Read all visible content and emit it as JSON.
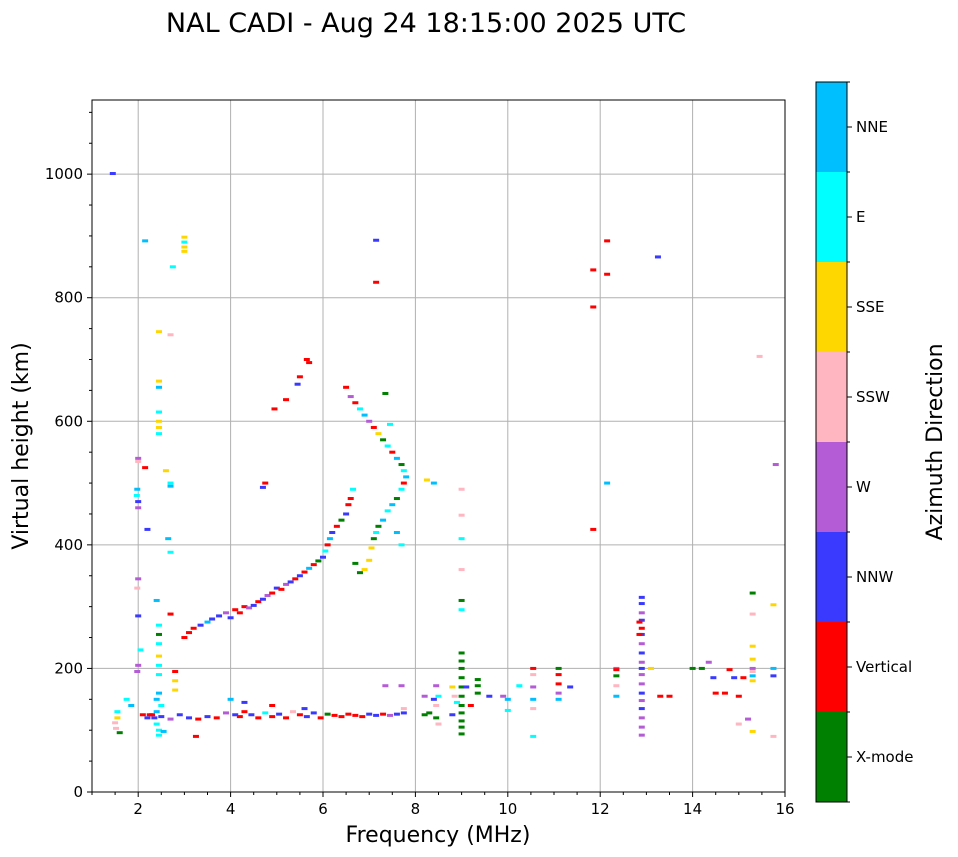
{
  "chart_data": {
    "type": "scatter",
    "title": "NAL CADI - Aug 24 18:15:00 2025 UTC",
    "xlabel": "Frequency (MHz)",
    "ylabel": "Virtual height (km)",
    "xlim": [
      1,
      16
    ],
    "ylim": [
      0,
      1120
    ],
    "xticks": [
      2,
      4,
      6,
      8,
      10,
      12,
      14,
      16
    ],
    "yticks": [
      0,
      200,
      400,
      600,
      800,
      1000
    ],
    "grid": true,
    "colorbar": {
      "title": "Azimuth Direction",
      "categories": [
        {
          "label": "NNE",
          "color": "#00BFFF"
        },
        {
          "label": "E",
          "color": "#00FFFF"
        },
        {
          "label": "SSE",
          "color": "#FFD700"
        },
        {
          "label": "SSW",
          "color": "#FFB6C1"
        },
        {
          "label": "W",
          "color": "#B45CD6"
        },
        {
          "label": "NNW",
          "color": "#3A3AFF"
        },
        {
          "label": "Vertical",
          "color": "#FF0000"
        },
        {
          "label": "X-mode",
          "color": "#008000"
        }
      ]
    },
    "points": [
      [
        1.45,
        1001,
        5
      ],
      [
        1.52,
        103,
        3
      ],
      [
        1.5,
        112,
        3
      ],
      [
        1.55,
        120,
        2
      ],
      [
        1.6,
        96,
        7
      ],
      [
        1.55,
        130,
        1
      ],
      [
        1.75,
        150,
        1
      ],
      [
        1.85,
        140,
        0
      ],
      [
        2.0,
        540,
        4
      ],
      [
        2.0,
        535,
        3
      ],
      [
        1.98,
        490,
        0
      ],
      [
        2.0,
        470,
        5
      ],
      [
        2.0,
        460,
        4
      ],
      [
        1.97,
        480,
        1
      ],
      [
        2.0,
        345,
        4
      ],
      [
        1.98,
        330,
        3
      ],
      [
        2.0,
        285,
        5
      ],
      [
        2.0,
        205,
        4
      ],
      [
        1.98,
        195,
        4
      ],
      [
        2.05,
        230,
        1
      ],
      [
        2.15,
        892,
        0
      ],
      [
        2.15,
        525,
        6
      ],
      [
        2.2,
        425,
        5
      ],
      [
        2.25,
        125,
        6
      ],
      [
        2.35,
        120,
        5
      ],
      [
        2.4,
        130,
        0
      ],
      [
        2.4,
        110,
        1
      ],
      [
        2.45,
        100,
        1
      ],
      [
        2.45,
        92,
        1
      ],
      [
        2.4,
        150,
        0
      ],
      [
        2.45,
        160,
        0
      ],
      [
        2.5,
        140,
        1
      ],
      [
        2.45,
        270,
        1
      ],
      [
        2.45,
        255,
        7
      ],
      [
        2.45,
        240,
        1
      ],
      [
        2.45,
        220,
        2
      ],
      [
        2.45,
        205,
        1
      ],
      [
        2.45,
        190,
        1
      ],
      [
        2.4,
        310,
        0
      ],
      [
        2.45,
        745,
        2
      ],
      [
        2.45,
        665,
        2
      ],
      [
        2.45,
        655,
        0
      ],
      [
        2.45,
        615,
        1
      ],
      [
        2.45,
        600,
        2
      ],
      [
        2.45,
        590,
        2
      ],
      [
        2.45,
        580,
        1
      ],
      [
        2.6,
        520,
        2
      ],
      [
        2.65,
        410,
        0
      ],
      [
        2.7,
        500,
        1
      ],
      [
        2.7,
        495,
        0
      ],
      [
        2.7,
        388,
        1
      ],
      [
        2.7,
        740,
        3
      ],
      [
        2.75,
        850,
        1
      ],
      [
        2.8,
        165,
        2
      ],
      [
        2.8,
        180,
        2
      ],
      [
        2.7,
        288,
        6
      ],
      [
        2.8,
        195,
        6
      ],
      [
        3.0,
        898,
        2
      ],
      [
        3.0,
        890,
        1
      ],
      [
        3.0,
        882,
        2
      ],
      [
        3.0,
        875,
        2
      ],
      [
        3.0,
        250,
        6
      ],
      [
        3.1,
        258,
        6
      ],
      [
        3.2,
        265,
        6
      ],
      [
        3.35,
        270,
        5
      ],
      [
        3.5,
        275,
        0
      ],
      [
        3.6,
        280,
        5
      ],
      [
        3.75,
        285,
        5
      ],
      [
        3.9,
        290,
        4
      ],
      [
        4.0,
        282,
        5
      ],
      [
        4.1,
        295,
        6
      ],
      [
        4.2,
        290,
        6
      ],
      [
        4.3,
        300,
        6
      ],
      [
        4.4,
        298,
        4
      ],
      [
        4.5,
        302,
        5
      ],
      [
        4.6,
        308,
        6
      ],
      [
        4.7,
        312,
        5
      ],
      [
        4.8,
        318,
        4
      ],
      [
        4.9,
        322,
        6
      ],
      [
        5.0,
        330,
        5
      ],
      [
        5.1,
        328,
        6
      ],
      [
        5.2,
        336,
        4
      ],
      [
        5.3,
        340,
        5
      ],
      [
        5.4,
        345,
        6
      ],
      [
        5.5,
        350,
        5
      ],
      [
        5.6,
        356,
        6
      ],
      [
        5.7,
        362,
        0
      ],
      [
        5.8,
        368,
        6
      ],
      [
        5.9,
        374,
        7
      ],
      [
        6.0,
        380,
        5
      ],
      [
        6.05,
        390,
        1
      ],
      [
        6.1,
        400,
        6
      ],
      [
        6.15,
        410,
        0
      ],
      [
        6.2,
        420,
        5
      ],
      [
        6.3,
        430,
        6
      ],
      [
        6.4,
        440,
        7
      ],
      [
        6.5,
        450,
        5
      ],
      [
        6.55,
        465,
        6
      ],
      [
        6.6,
        475,
        6
      ],
      [
        6.65,
        490,
        1
      ],
      [
        6.7,
        370,
        7
      ],
      [
        6.8,
        355,
        7
      ],
      [
        6.9,
        360,
        2
      ],
      [
        7.0,
        375,
        2
      ],
      [
        7.05,
        395,
        2
      ],
      [
        7.1,
        410,
        7
      ],
      [
        7.15,
        420,
        1
      ],
      [
        7.2,
        430,
        7
      ],
      [
        7.3,
        440,
        0
      ],
      [
        7.4,
        455,
        1
      ],
      [
        7.5,
        465,
        0
      ],
      [
        7.6,
        475,
        7
      ],
      [
        7.7,
        490,
        1
      ],
      [
        7.75,
        500,
        6
      ],
      [
        7.8,
        510,
        0
      ],
      [
        7.75,
        520,
        1
      ],
      [
        7.7,
        530,
        7
      ],
      [
        7.6,
        540,
        0
      ],
      [
        7.5,
        550,
        6
      ],
      [
        7.4,
        560,
        1
      ],
      [
        7.3,
        570,
        7
      ],
      [
        7.2,
        580,
        2
      ],
      [
        7.1,
        590,
        6
      ],
      [
        7.0,
        600,
        4
      ],
      [
        6.9,
        610,
        0
      ],
      [
        6.8,
        620,
        1
      ],
      [
        6.7,
        630,
        6
      ],
      [
        6.6,
        640,
        4
      ],
      [
        6.5,
        655,
        6
      ],
      [
        7.35,
        645,
        7
      ],
      [
        7.45,
        595,
        1
      ],
      [
        7.6,
        420,
        0
      ],
      [
        7.7,
        400,
        1
      ],
      [
        5.65,
        700,
        6
      ],
      [
        5.7,
        695,
        6
      ],
      [
        5.5,
        672,
        6
      ],
      [
        5.45,
        660,
        5
      ],
      [
        5.2,
        635,
        6
      ],
      [
        4.95,
        620,
        6
      ],
      [
        4.75,
        500,
        6
      ],
      [
        4.7,
        493,
        5
      ],
      [
        7.15,
        893,
        5
      ],
      [
        7.15,
        825,
        6
      ],
      [
        2.1,
        125,
        6
      ],
      [
        2.2,
        120,
        5
      ],
      [
        2.3,
        125,
        6
      ],
      [
        2.5,
        122,
        5
      ],
      [
        2.7,
        118,
        4
      ],
      [
        2.9,
        125,
        5
      ],
      [
        3.1,
        120,
        5
      ],
      [
        3.3,
        118,
        6
      ],
      [
        3.5,
        122,
        5
      ],
      [
        3.7,
        120,
        6
      ],
      [
        3.9,
        128,
        4
      ],
      [
        4.1,
        125,
        5
      ],
      [
        4.2,
        122,
        6
      ],
      [
        4.3,
        130,
        6
      ],
      [
        4.45,
        125,
        5
      ],
      [
        4.6,
        120,
        6
      ],
      [
        4.75,
        128,
        1
      ],
      [
        4.9,
        122,
        6
      ],
      [
        5.05,
        126,
        5
      ],
      [
        5.2,
        120,
        6
      ],
      [
        5.35,
        130,
        3
      ],
      [
        5.5,
        125,
        6
      ],
      [
        5.65,
        122,
        5
      ],
      [
        5.8,
        128,
        5
      ],
      [
        5.95,
        120,
        6
      ],
      [
        6.1,
        126,
        7
      ],
      [
        6.25,
        124,
        6
      ],
      [
        6.4,
        122,
        6
      ],
      [
        6.55,
        126,
        6
      ],
      [
        6.7,
        124,
        6
      ],
      [
        6.85,
        122,
        6
      ],
      [
        7.0,
        126,
        5
      ],
      [
        7.15,
        124,
        5
      ],
      [
        7.3,
        126,
        6
      ],
      [
        7.45,
        124,
        4
      ],
      [
        7.6,
        126,
        5
      ],
      [
        7.75,
        128,
        5
      ],
      [
        7.75,
        135,
        3
      ],
      [
        3.25,
        90,
        6
      ],
      [
        2.55,
        98,
        0
      ],
      [
        4.0,
        150,
        0
      ],
      [
        4.3,
        145,
        5
      ],
      [
        4.9,
        140,
        6
      ],
      [
        5.6,
        135,
        5
      ],
      [
        7.35,
        172,
        4
      ],
      [
        7.7,
        172,
        4
      ],
      [
        8.25,
        505,
        2
      ],
      [
        8.4,
        500,
        0
      ],
      [
        8.2,
        155,
        4
      ],
      [
        8.45,
        172,
        4
      ],
      [
        8.5,
        155,
        1
      ],
      [
        8.4,
        150,
        5
      ],
      [
        8.2,
        125,
        7
      ],
      [
        8.3,
        128,
        7
      ],
      [
        8.45,
        120,
        7
      ],
      [
        8.45,
        140,
        3
      ],
      [
        8.5,
        110,
        3
      ],
      [
        8.8,
        170,
        2
      ],
      [
        8.85,
        155,
        3
      ],
      [
        8.9,
        145,
        1
      ],
      [
        8.8,
        125,
        5
      ],
      [
        9.0,
        490,
        3
      ],
      [
        9.0,
        448,
        3
      ],
      [
        9.0,
        410,
        1
      ],
      [
        9.0,
        360,
        3
      ],
      [
        9.0,
        310,
        7
      ],
      [
        9.0,
        295,
        1
      ],
      [
        9.0,
        225,
        7
      ],
      [
        9.0,
        212,
        7
      ],
      [
        9.0,
        200,
        7
      ],
      [
        9.0,
        185,
        7
      ],
      [
        9.0,
        170,
        7
      ],
      [
        9.0,
        155,
        7
      ],
      [
        9.0,
        140,
        7
      ],
      [
        9.0,
        128,
        7
      ],
      [
        9.0,
        115,
        7
      ],
      [
        9.0,
        105,
        7
      ],
      [
        9.0,
        94,
        7
      ],
      [
        9.1,
        170,
        5
      ],
      [
        9.2,
        140,
        6
      ],
      [
        9.35,
        182,
        7
      ],
      [
        9.35,
        172,
        7
      ],
      [
        9.35,
        160,
        7
      ],
      [
        9.6,
        155,
        5
      ],
      [
        9.9,
        155,
        4
      ],
      [
        10.0,
        150,
        0
      ],
      [
        10.0,
        132,
        1
      ],
      [
        10.25,
        172,
        1
      ],
      [
        10.55,
        200,
        6
      ],
      [
        10.55,
        190,
        3
      ],
      [
        10.55,
        170,
        4
      ],
      [
        10.55,
        150,
        0
      ],
      [
        10.55,
        135,
        3
      ],
      [
        10.55,
        90,
        1
      ],
      [
        11.1,
        200,
        7
      ],
      [
        11.1,
        190,
        6
      ],
      [
        11.1,
        175,
        6
      ],
      [
        11.1,
        160,
        4
      ],
      [
        11.1,
        150,
        0
      ],
      [
        11.35,
        170,
        5
      ],
      [
        11.85,
        845,
        6
      ],
      [
        11.85,
        785,
        6
      ],
      [
        11.85,
        425,
        6
      ],
      [
        12.15,
        892,
        6
      ],
      [
        12.15,
        838,
        6
      ],
      [
        12.15,
        500,
        0
      ],
      [
        12.35,
        200,
        4
      ],
      [
        12.35,
        198,
        6
      ],
      [
        12.35,
        188,
        7
      ],
      [
        12.35,
        172,
        3
      ],
      [
        12.35,
        155,
        0
      ],
      [
        12.9,
        315,
        5
      ],
      [
        12.9,
        305,
        5
      ],
      [
        12.9,
        290,
        4
      ],
      [
        12.9,
        278,
        5
      ],
      [
        12.9,
        265,
        6
      ],
      [
        12.9,
        255,
        5
      ],
      [
        12.9,
        240,
        4
      ],
      [
        12.9,
        225,
        5
      ],
      [
        12.9,
        210,
        4
      ],
      [
        12.9,
        200,
        5
      ],
      [
        12.9,
        190,
        4
      ],
      [
        12.9,
        175,
        4
      ],
      [
        12.9,
        160,
        5
      ],
      [
        12.9,
        148,
        4
      ],
      [
        12.9,
        135,
        5
      ],
      [
        12.9,
        120,
        4
      ],
      [
        12.9,
        105,
        4
      ],
      [
        12.9,
        92,
        4
      ],
      [
        12.85,
        275,
        6
      ],
      [
        12.85,
        255,
        6
      ],
      [
        13.1,
        200,
        2
      ],
      [
        13.25,
        866,
        5
      ],
      [
        13.3,
        155,
        6
      ],
      [
        13.5,
        155,
        6
      ],
      [
        14.0,
        200,
        7
      ],
      [
        14.2,
        200,
        7
      ],
      [
        14.35,
        210,
        4
      ],
      [
        14.45,
        185,
        5
      ],
      [
        14.5,
        160,
        6
      ],
      [
        14.7,
        160,
        6
      ],
      [
        14.8,
        198,
        6
      ],
      [
        14.9,
        185,
        5
      ],
      [
        15.0,
        155,
        6
      ],
      [
        15.1,
        185,
        6
      ],
      [
        15.0,
        110,
        3
      ],
      [
        15.2,
        118,
        4
      ],
      [
        15.3,
        98,
        2
      ],
      [
        15.3,
        322,
        7
      ],
      [
        15.3,
        288,
        3
      ],
      [
        15.3,
        236,
        2
      ],
      [
        15.3,
        215,
        2
      ],
      [
        15.3,
        200,
        4
      ],
      [
        15.3,
        195,
        3
      ],
      [
        15.3,
        188,
        0
      ],
      [
        15.3,
        180,
        2
      ],
      [
        15.45,
        705,
        3
      ],
      [
        15.75,
        303,
        2
      ],
      [
        15.8,
        530,
        4
      ],
      [
        15.75,
        200,
        0
      ],
      [
        15.75,
        188,
        5
      ],
      [
        15.75,
        90,
        3
      ]
    ]
  }
}
